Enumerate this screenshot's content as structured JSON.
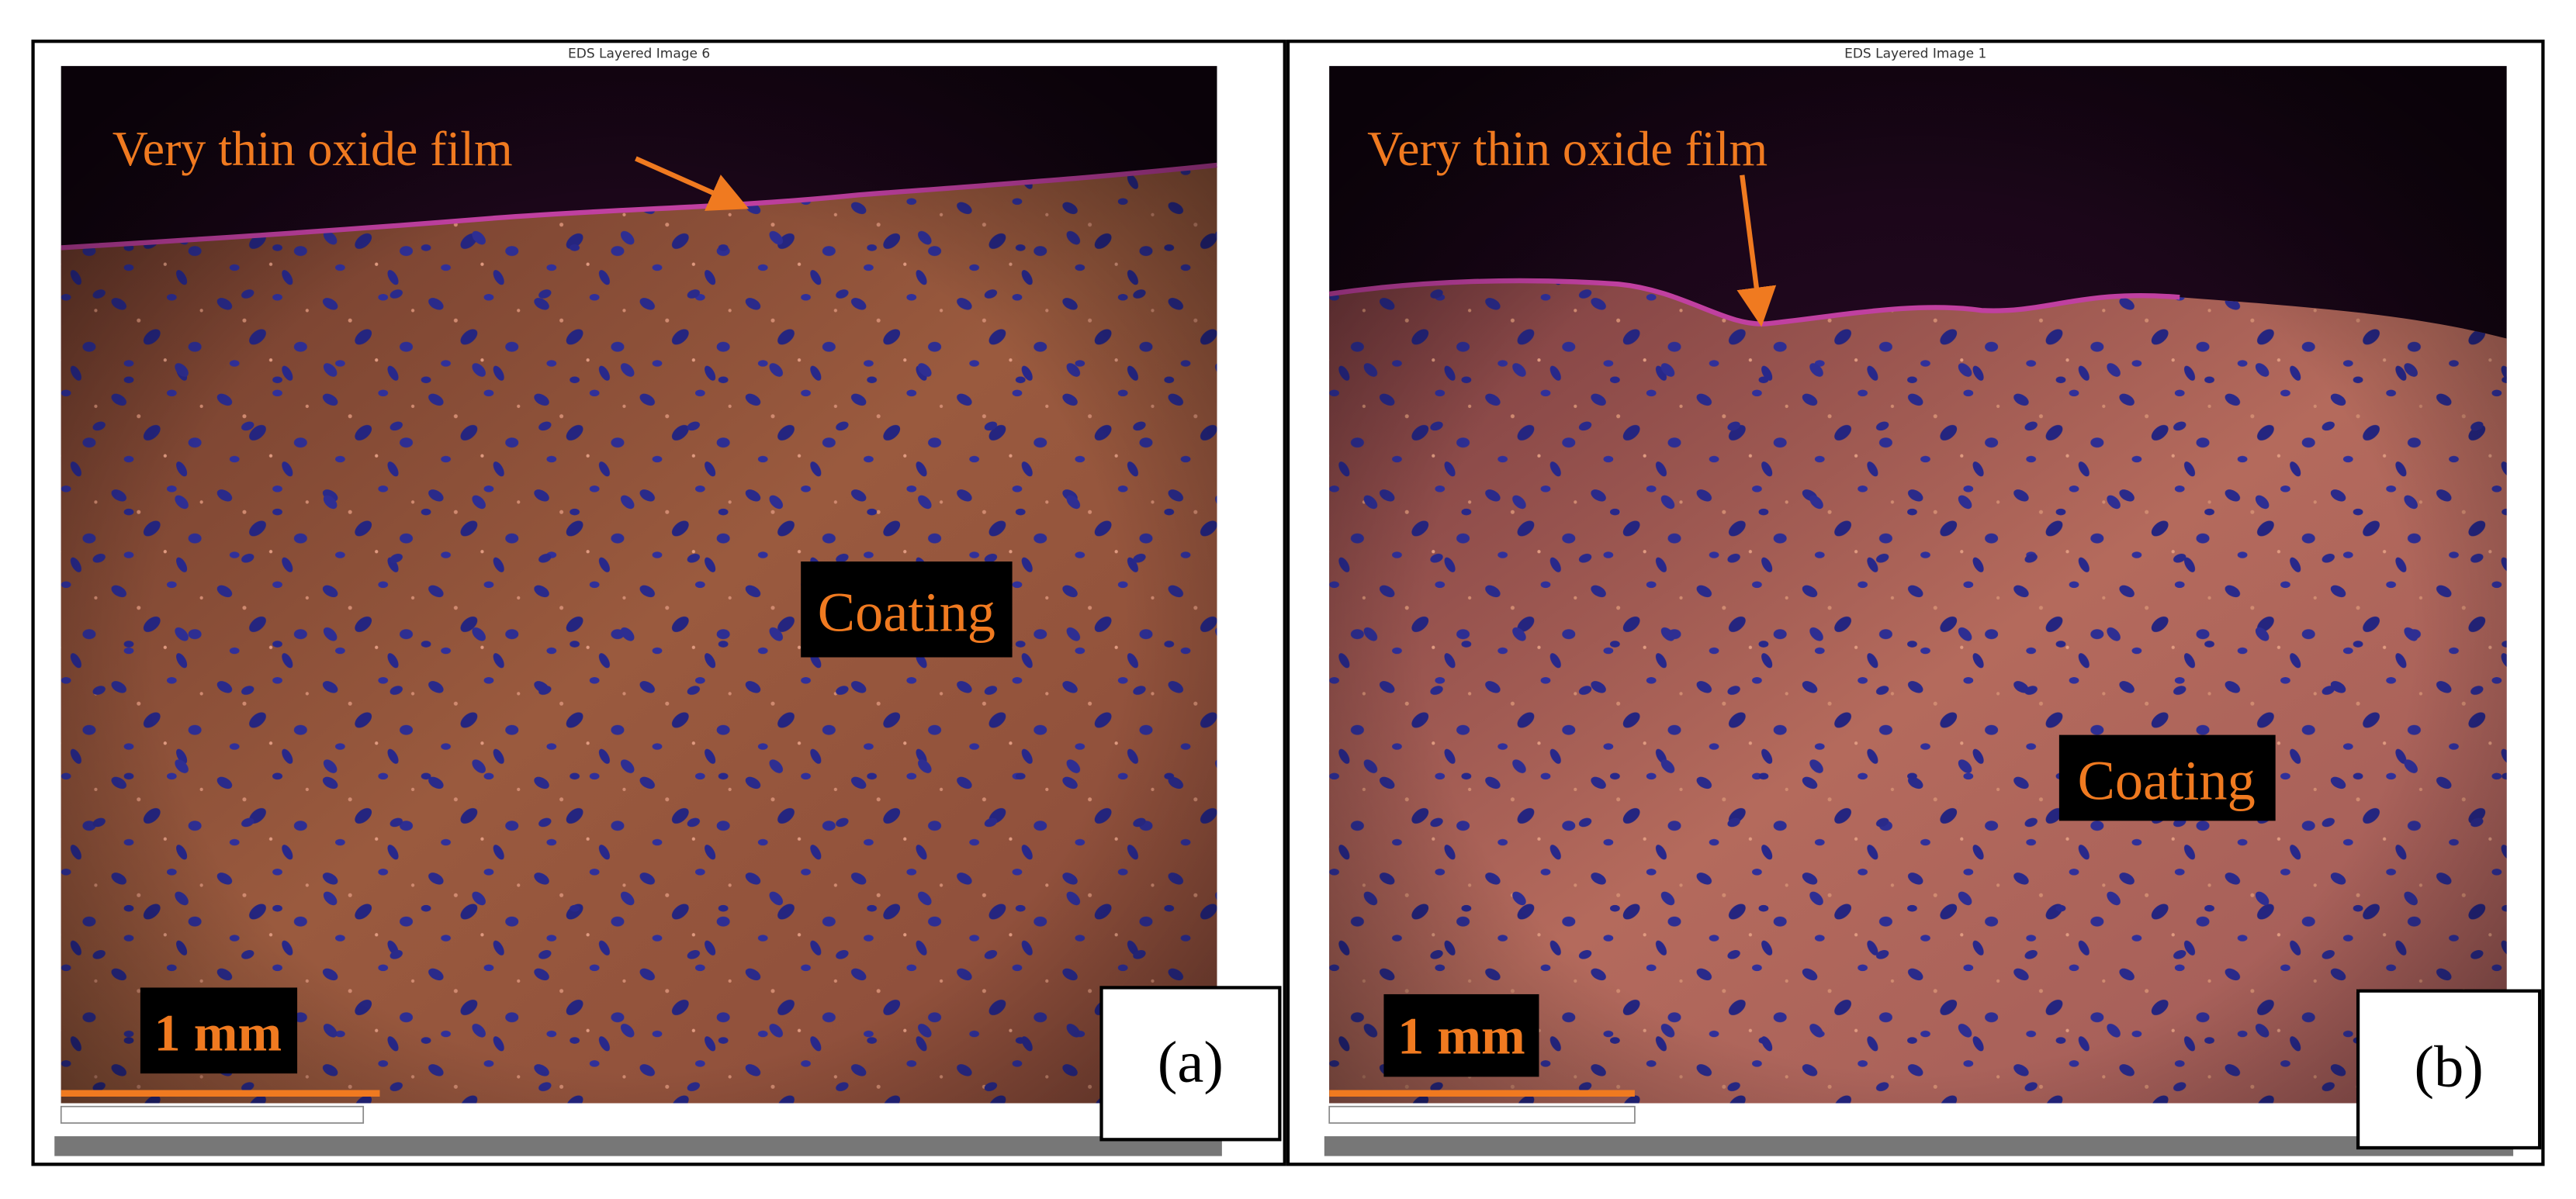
{
  "panels": [
    {
      "title": "EDS Layered Image 6",
      "annotation": "Very thin oxide film",
      "region_label": "Coating",
      "scale_bar": "1 mm",
      "panel_label": "(a)"
    },
    {
      "title": "EDS Layered Image 1",
      "annotation": "Very thin oxide film",
      "region_label": "Coating",
      "scale_bar": "1 mm",
      "panel_label": "(b)"
    }
  ]
}
